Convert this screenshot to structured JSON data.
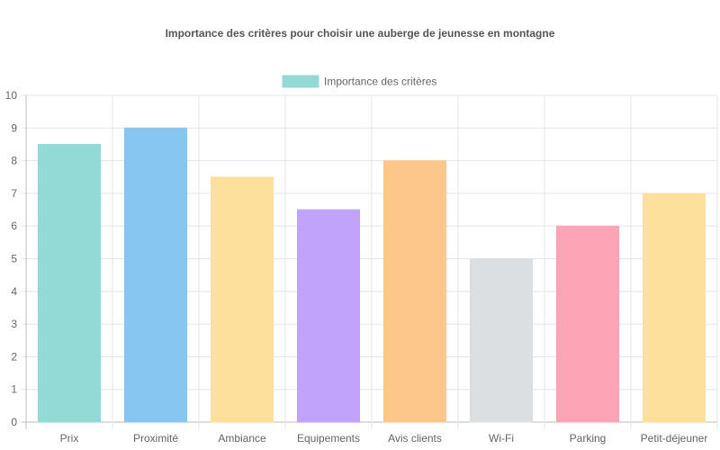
{
  "chart_data": {
    "type": "bar",
    "title": "Importance des critères pour choisir une auberge de jeunesse en montagne",
    "categories": [
      "Prix",
      "Proximité",
      "Ambiance",
      "Equipements",
      "Avis clients",
      "Wi-Fi",
      "Parking",
      "Petit-déjeuner"
    ],
    "series": [
      {
        "name": "Importance des critères",
        "values": [
          8.5,
          9,
          7.5,
          6.5,
          8,
          5,
          6,
          7
        ]
      }
    ],
    "colors": [
      "#93d9d6",
      "#88c6f2",
      "#fde09c",
      "#c2a3fc",
      "#fdc78c",
      "#dcdfe1",
      "#fda4b7",
      "#fde09c"
    ],
    "legend_color": "#93d9d6",
    "legend_position": "top",
    "ylim": [
      0,
      10
    ],
    "yticks": [
      0,
      1,
      2,
      3,
      4,
      5,
      6,
      7,
      8,
      9,
      10
    ],
    "xlabel": "",
    "ylabel": "",
    "grid": true
  }
}
